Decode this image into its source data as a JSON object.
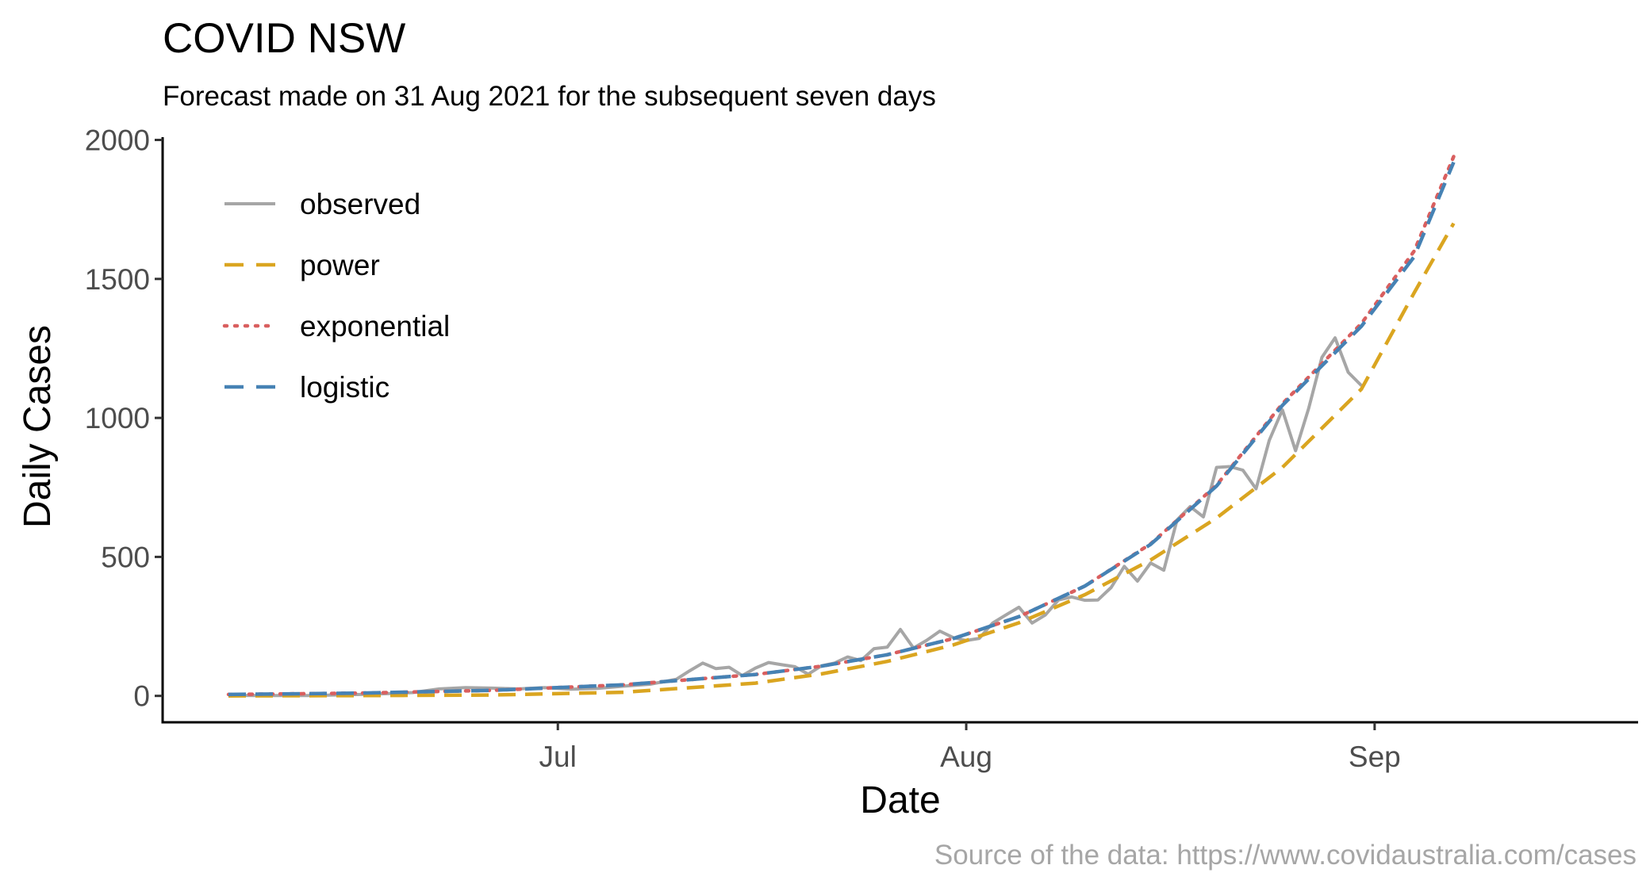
{
  "chart_data": {
    "type": "line",
    "title": "COVID NSW",
    "subtitle": "Forecast made on 31 Aug 2021 for the subsequent seven days",
    "xlabel": "Date",
    "ylabel": "Daily Cases",
    "caption": "Source of the data: https://www.covidaustralia.com/cases",
    "x_ticks": [
      {
        "label": "Jul",
        "date": "2021-07-01"
      },
      {
        "label": "Aug",
        "date": "2021-08-01"
      },
      {
        "label": "Sep",
        "date": "2021-09-01"
      }
    ],
    "y_ticks": [
      0,
      500,
      1000,
      1500,
      2000
    ],
    "xlim": [
      "2021-06-01",
      "2021-09-21"
    ],
    "ylim": [
      -95,
      2010
    ],
    "grid": false,
    "legend_position": "top-left",
    "series": [
      {
        "name": "observed",
        "style": "solid",
        "color": "#a6a6a6",
        "x": [
          "2021-06-06",
          "2021-06-08",
          "2021-06-10",
          "2021-06-12",
          "2021-06-14",
          "2021-06-16",
          "2021-06-18",
          "2021-06-20",
          "2021-06-22",
          "2021-06-24",
          "2021-06-26",
          "2021-06-28",
          "2021-06-30",
          "2021-07-02",
          "2021-07-04",
          "2021-07-06",
          "2021-07-08",
          "2021-07-10",
          "2021-07-11",
          "2021-07-12",
          "2021-07-13",
          "2021-07-14",
          "2021-07-15",
          "2021-07-16",
          "2021-07-17",
          "2021-07-18",
          "2021-07-19",
          "2021-07-20",
          "2021-07-21",
          "2021-07-22",
          "2021-07-23",
          "2021-07-24",
          "2021-07-25",
          "2021-07-26",
          "2021-07-27",
          "2021-07-28",
          "2021-07-29",
          "2021-07-30",
          "2021-07-31",
          "2021-08-01",
          "2021-08-02",
          "2021-08-03",
          "2021-08-04",
          "2021-08-05",
          "2021-08-06",
          "2021-08-07",
          "2021-08-08",
          "2021-08-09",
          "2021-08-10",
          "2021-08-11",
          "2021-08-12",
          "2021-08-13",
          "2021-08-14",
          "2021-08-15",
          "2021-08-16",
          "2021-08-17",
          "2021-08-18",
          "2021-08-19",
          "2021-08-20",
          "2021-08-21",
          "2021-08-22",
          "2021-08-23",
          "2021-08-24",
          "2021-08-25",
          "2021-08-26",
          "2021-08-27",
          "2021-08-28",
          "2021-08-29",
          "2021-08-30",
          "2021-08-31"
        ],
        "values": [
          2,
          1,
          1,
          1,
          3,
          5,
          8,
          12,
          25,
          30,
          28,
          25,
          30,
          24,
          27,
          35,
          42,
          60,
          90,
          118,
          98,
          103,
          73,
          100,
          120,
          112,
          105,
          78,
          108,
          118,
          140,
          127,
          170,
          175,
          239,
          172,
          200,
          233,
          210,
          199,
          207,
          262,
          291,
          319,
          262,
          291,
          345,
          356,
          344,
          345,
          390,
          466,
          413,
          478,
          452,
          633,
          681,
          644,
          822,
          825,
          812,
          745,
          919,
          1029,
          882,
          1035,
          1218,
          1288,
          1164,
          1116
        ],
        "ylim_note": ""
      },
      {
        "name": "power",
        "style": "dashed",
        "color": "#daa520",
        "x": [
          "2021-06-06",
          "2021-06-16",
          "2021-06-26",
          "2021-07-06",
          "2021-07-16",
          "2021-07-21",
          "2021-07-26",
          "2021-07-31",
          "2021-08-05",
          "2021-08-10",
          "2021-08-15",
          "2021-08-20",
          "2021-08-25",
          "2021-08-31",
          "2021-09-04",
          "2021-09-07"
        ],
        "values": [
          0,
          1,
          3,
          13,
          46,
          79,
          124,
          183,
          263,
          364,
          489,
          640,
          822,
          1104,
          1450,
          1700
        ]
      },
      {
        "name": "exponential",
        "style": "dotted",
        "color": "#d95f5f",
        "x": [
          "2021-06-06",
          "2021-06-16",
          "2021-06-26",
          "2021-07-06",
          "2021-07-16",
          "2021-07-21",
          "2021-07-26",
          "2021-07-31",
          "2021-08-05",
          "2021-08-10",
          "2021-08-15",
          "2021-08-20",
          "2021-08-25",
          "2021-08-31",
          "2021-09-04",
          "2021-09-07"
        ],
        "values": [
          5,
          10,
          20,
          40,
          77,
          107,
          148,
          206,
          285,
          395,
          547,
          758,
          1051,
          1340,
          1600,
          1940
        ]
      },
      {
        "name": "logistic",
        "style": "dashed",
        "color": "#4682b4",
        "x": [
          "2021-06-06",
          "2021-06-16",
          "2021-06-26",
          "2021-07-06",
          "2021-07-16",
          "2021-07-21",
          "2021-07-26",
          "2021-07-31",
          "2021-08-05",
          "2021-08-10",
          "2021-08-15",
          "2021-08-20",
          "2021-08-25",
          "2021-08-31",
          "2021-09-04",
          "2021-09-07"
        ],
        "values": [
          5,
          10,
          20,
          40,
          77,
          107,
          148,
          206,
          285,
          395,
          545,
          755,
          1045,
          1330,
          1580,
          1920
        ]
      }
    ]
  }
}
